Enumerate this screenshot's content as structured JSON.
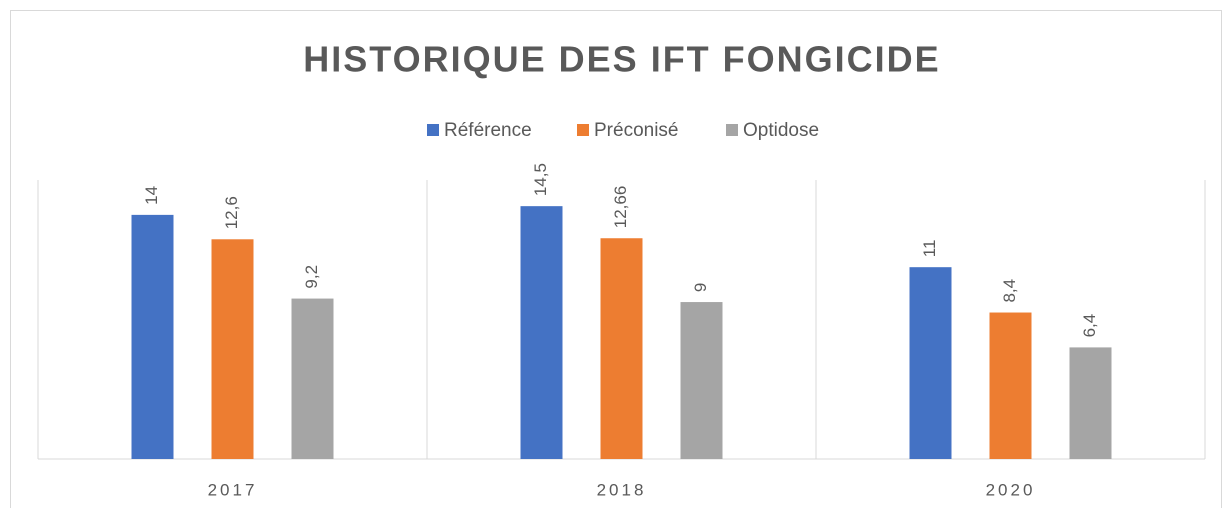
{
  "chart_data": {
    "type": "bar",
    "title": "HISTORIQUE DES IFT FONGICIDE",
    "categories": [
      "2017",
      "2018",
      "2020"
    ],
    "series": [
      {
        "name": "Référence",
        "color": "#4472c4",
        "values": [
          14,
          14.5,
          11
        ],
        "value_labels": [
          "14",
          "14,5",
          "11"
        ]
      },
      {
        "name": "Préconisé",
        "color": "#ed7d31",
        "values": [
          12.6,
          12.66,
          8.4
        ],
        "value_labels": [
          "12,6",
          "12,66",
          "8,4"
        ]
      },
      {
        "name": "Optidose",
        "color": "#a5a5a5",
        "values": [
          9.2,
          9,
          6.4
        ],
        "value_labels": [
          "9,2",
          "9",
          "6,4"
        ]
      }
    ],
    "ylim": [
      0,
      16
    ],
    "legend": "top"
  }
}
